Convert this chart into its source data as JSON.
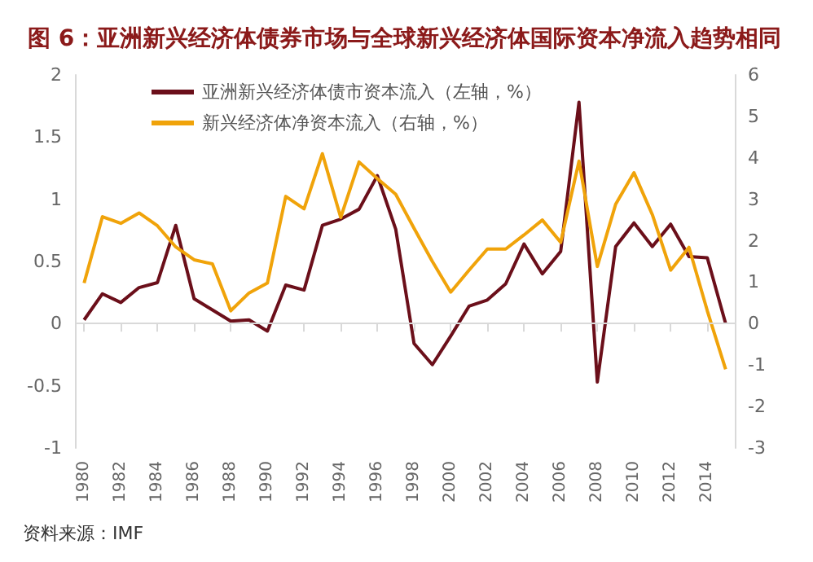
{
  "chart_data": {
    "type": "line",
    "title": "图 6：亚洲新兴经济体债券市场与全球新兴经济体国际资本净流入趋势相同",
    "x": [
      1980,
      1981,
      1982,
      1983,
      1984,
      1985,
      1986,
      1987,
      1988,
      1989,
      1990,
      1991,
      1992,
      1993,
      1994,
      1995,
      1996,
      1997,
      1998,
      1999,
      2000,
      2001,
      2002,
      2003,
      2004,
      2005,
      2006,
      2007,
      2008,
      2009,
      2010,
      2011,
      2012,
      2013,
      2014,
      2015
    ],
    "series": [
      {
        "name": "亚洲新兴经济体债市资本流入（左轴，%）",
        "color": "#6b0f1a",
        "values": [
          0.03,
          0.24,
          0.17,
          0.29,
          0.33,
          0.79,
          0.2,
          0.11,
          0.02,
          0.03,
          -0.06,
          0.31,
          0.27,
          0.79,
          0.84,
          0.92,
          1.19,
          0.76,
          -0.16,
          -0.33,
          -0.1,
          0.14,
          0.19,
          0.32,
          0.64,
          0.4,
          0.58,
          1.78,
          -0.47,
          0.62,
          0.81,
          0.62,
          0.8,
          0.54,
          0.53,
          0
        ]
      },
      {
        "name": "新兴经济体净资本流入（右轴，%）",
        "color": "#f0a30a",
        "axis": "y2",
        "values": [
          0.98,
          2.58,
          2.42,
          2.67,
          2.36,
          1.85,
          1.54,
          1.44,
          0.31,
          0.74,
          0.98,
          3.07,
          2.77,
          4.1,
          2.56,
          3.9,
          3.5,
          3.12,
          2.3,
          1.5,
          0.76,
          1.29,
          1.8,
          1.8,
          2.14,
          2.5,
          1.96,
          3.92,
          1.38,
          2.88,
          3.64,
          2.63,
          1.29,
          1.84,
          0.31,
          -1.1
        ]
      }
    ],
    "xlim": [
      1979.5,
      2015.5
    ],
    "xticks": [
      1980,
      1982,
      1984,
      1986,
      1988,
      1990,
      1992,
      1994,
      1996,
      1998,
      2000,
      2002,
      2004,
      2006,
      2008,
      2010,
      2012,
      2014
    ],
    "ylim": [
      -1,
      2
    ],
    "yticks": [
      -1,
      -0.5,
      0,
      0.5,
      1,
      1.5,
      2
    ],
    "y2lim": [
      -3,
      6
    ],
    "y2ticks": [
      -3,
      -2,
      -1,
      0,
      1,
      2,
      3,
      4,
      5,
      6
    ],
    "ref_lines": [
      {
        "axis": "y",
        "value": 0,
        "color": "#d9d9d9"
      }
    ],
    "legend": "top left",
    "grid": false,
    "marker": "none",
    "annotations": [
      "资料来源：IMF"
    ]
  }
}
